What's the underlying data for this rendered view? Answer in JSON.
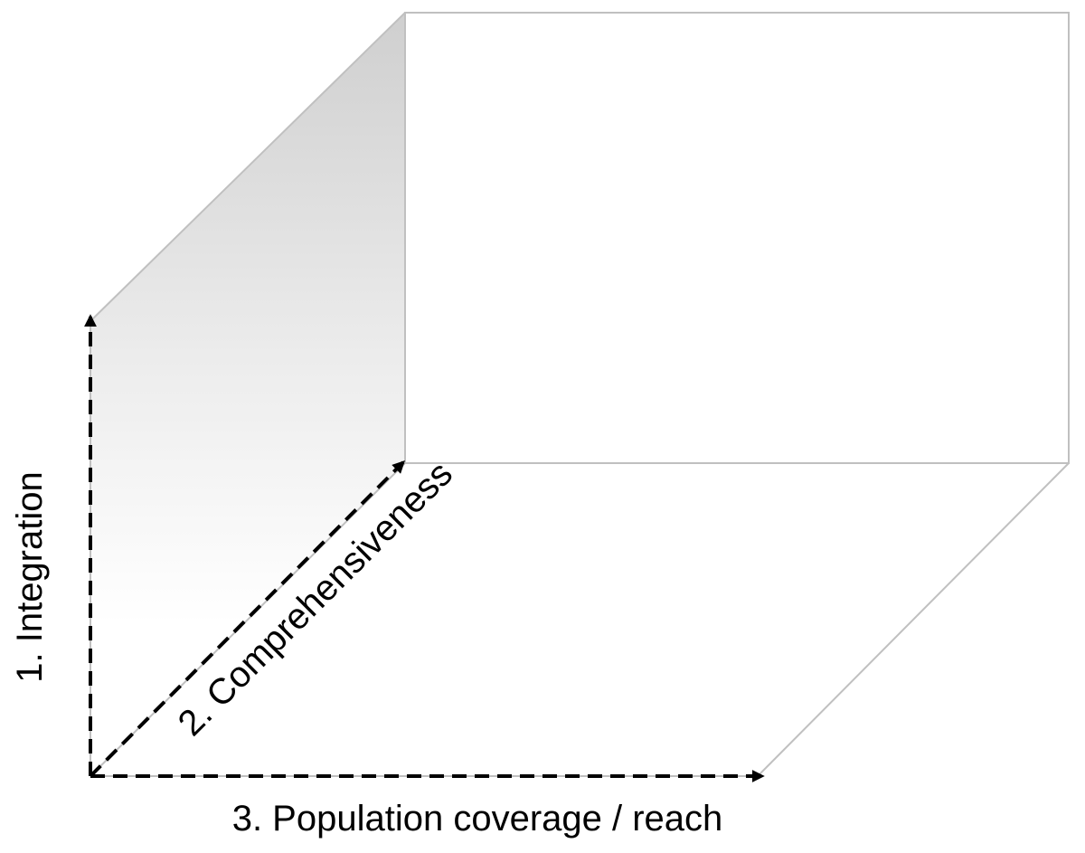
{
  "axes": {
    "integration": {
      "label": "1. Integration"
    },
    "comprehensiveness": {
      "label": "2. Comprehensiveness"
    },
    "population": {
      "label": "3. Population coverage / reach"
    }
  },
  "colors": {
    "box_edge": "#c0c0c0",
    "shade_top": "#cfcfcf",
    "shade_bottom": "#ffffff",
    "arrow": "#000000"
  }
}
